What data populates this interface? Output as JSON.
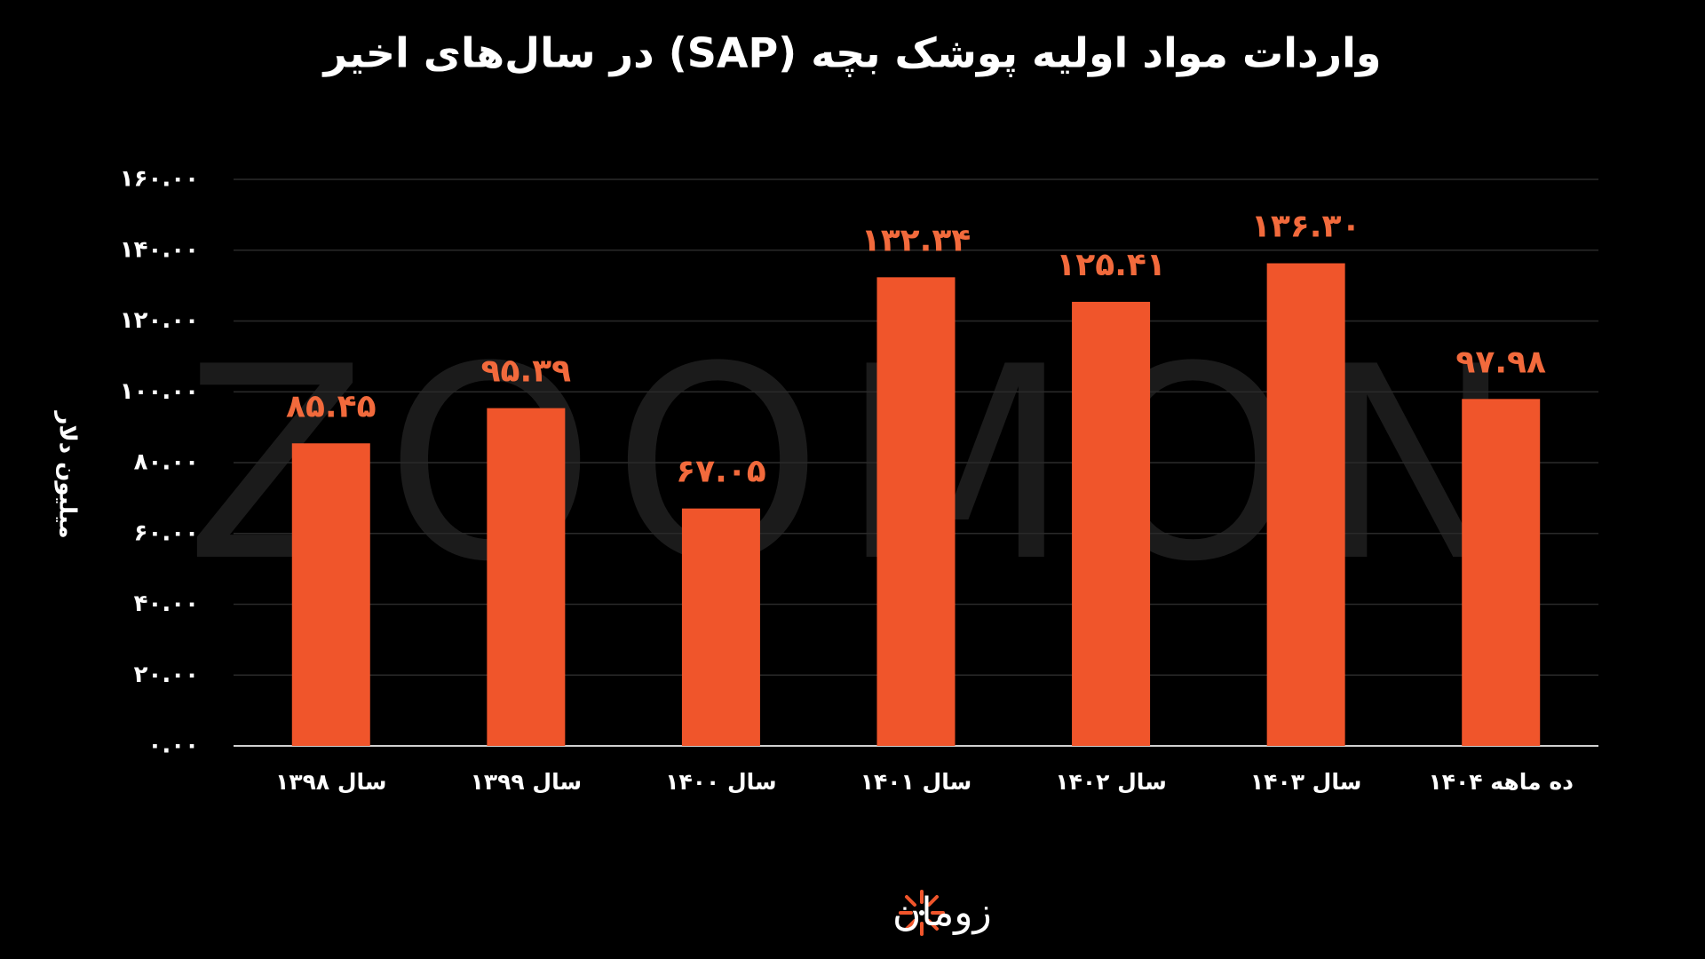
{
  "chart_data": {
    "type": "bar",
    "title": "واردات مواد اولیه پوشک بچه (SAP) در سال‌های اخیر",
    "y_axis_label": "میلیون دلار",
    "watermark": "ZOOMON",
    "logo_text": "زومان",
    "categories": [
      "سال ۱۳۹۸",
      "سال ۱۳۹۹",
      "سال ۱۴۰۰",
      "سال ۱۴۰۱",
      "سال ۱۴۰۲",
      "سال ۱۴۰۳",
      "ده ماهه ۱۴۰۴"
    ],
    "values": [
      85.45,
      95.39,
      67.05,
      132.34,
      125.41,
      136.3,
      97.98
    ],
    "value_labels": [
      "۸۵.۴۵",
      "۹۵.۳۹",
      "۶۷.۰۵",
      "۱۳۲.۳۴",
      "۱۲۵.۴۱",
      "۱۳۶.۳۰",
      "۹۷.۹۸"
    ],
    "color": "#f0552b",
    "label_color": "#f26a3c",
    "ylim": [
      0,
      160
    ],
    "yticks": [
      {
        "value": 0,
        "label": "۰.۰۰"
      },
      {
        "value": 20,
        "label": "۲۰.۰۰"
      },
      {
        "value": 40,
        "label": "۴۰.۰۰"
      },
      {
        "value": 60,
        "label": "۶۰.۰۰"
      },
      {
        "value": 80,
        "label": "۸۰.۰۰"
      },
      {
        "value": 100,
        "label": "۱۰۰.۰۰"
      },
      {
        "value": 120,
        "label": "۱۲۰.۰۰"
      },
      {
        "value": 140,
        "label": "۱۴۰.۰۰"
      },
      {
        "value": 160,
        "label": "۱۶۰.۰۰"
      }
    ],
    "grid": true
  }
}
